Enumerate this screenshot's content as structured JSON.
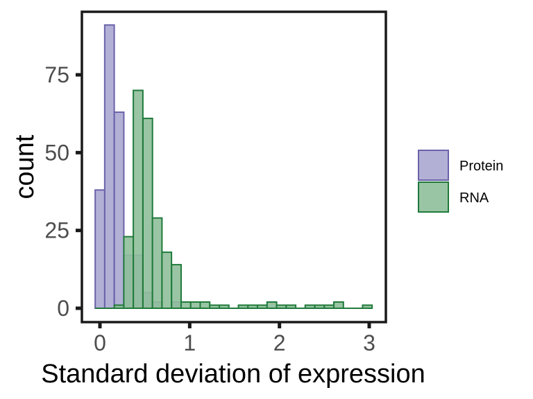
{
  "chart_data": {
    "type": "bar",
    "subtype": "overlapping-histogram",
    "xlabel": "Standard deviation of expression",
    "ylabel": "count",
    "xlim": [
      -0.05,
      3.05
    ],
    "ylim": [
      0,
      92
    ],
    "x_ticks": [
      0,
      1,
      2,
      3
    ],
    "y_ticks": [
      0,
      25,
      50,
      75
    ],
    "x_tick_labels": [
      "0",
      "1",
      "2",
      "3"
    ],
    "y_tick_labels": [
      "0",
      "25",
      "50",
      "75"
    ],
    "bin_width": 0.1064,
    "grid": false,
    "legend_position": "right",
    "series": [
      {
        "name": "Protein",
        "fill": "#aaa7d0",
        "stroke": "#6a62aa",
        "bins": [
          {
            "x0": -0.053,
            "count": 38
          },
          {
            "x0": 0.053,
            "count": 91
          },
          {
            "x0": 0.16,
            "count": 63
          },
          {
            "x0": 0.266,
            "count": 17
          },
          {
            "x0": 0.372,
            "count": 17
          },
          {
            "x0": 0.479,
            "count": 5
          },
          {
            "x0": 0.585,
            "count": 2
          },
          {
            "x0": 0.691,
            "count": 0
          },
          {
            "x0": 0.798,
            "count": 2
          }
        ]
      },
      {
        "name": "RNA",
        "fill": "#8fbf9a",
        "stroke": "#1f7a3a",
        "bins": [
          {
            "x0": -0.053,
            "count": 0
          },
          {
            "x0": 0.053,
            "count": 0
          },
          {
            "x0": 0.16,
            "count": 1
          },
          {
            "x0": 0.266,
            "count": 23
          },
          {
            "x0": 0.372,
            "count": 70
          },
          {
            "x0": 0.479,
            "count": 61
          },
          {
            "x0": 0.585,
            "count": 29
          },
          {
            "x0": 0.691,
            "count": 18
          },
          {
            "x0": 0.798,
            "count": 14
          },
          {
            "x0": 0.904,
            "count": 2
          },
          {
            "x0": 1.011,
            "count": 2
          },
          {
            "x0": 1.117,
            "count": 2
          },
          {
            "x0": 1.223,
            "count": 1
          },
          {
            "x0": 1.33,
            "count": 1
          },
          {
            "x0": 1.436,
            "count": 0
          },
          {
            "x0": 1.543,
            "count": 1
          },
          {
            "x0": 1.649,
            "count": 1
          },
          {
            "x0": 1.755,
            "count": 1
          },
          {
            "x0": 1.862,
            "count": 2
          },
          {
            "x0": 1.968,
            "count": 1
          },
          {
            "x0": 2.075,
            "count": 1
          },
          {
            "x0": 2.181,
            "count": 0
          },
          {
            "x0": 2.287,
            "count": 1
          },
          {
            "x0": 2.394,
            "count": 1
          },
          {
            "x0": 2.5,
            "count": 1
          },
          {
            "x0": 2.606,
            "count": 2
          },
          {
            "x0": 2.713,
            "count": 0
          },
          {
            "x0": 2.819,
            "count": 0
          },
          {
            "x0": 2.926,
            "count": 1
          }
        ]
      }
    ]
  }
}
